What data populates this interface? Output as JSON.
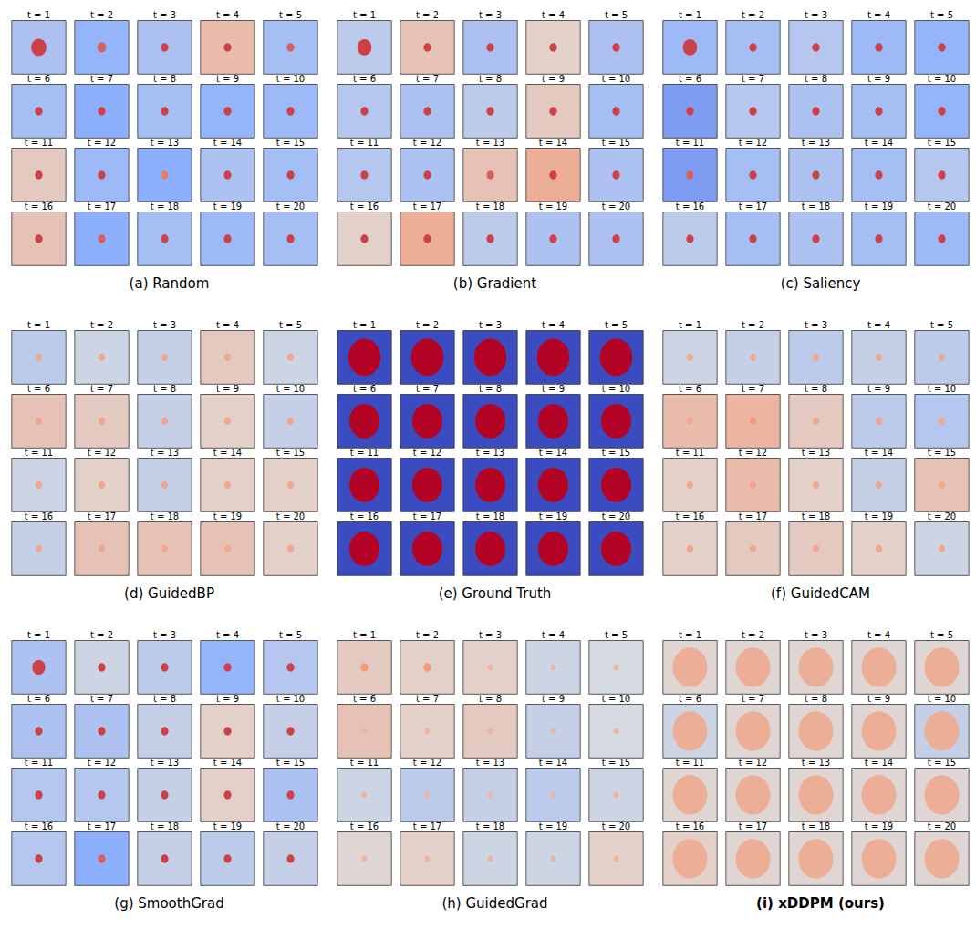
{
  "frame_titles": [
    "t = 1",
    "t = 2",
    "t = 3",
    "t = 4",
    "t = 5",
    "t = 6",
    "t = 7",
    "t = 8",
    "t = 9",
    "t = 10",
    "t = 11",
    "t = 12",
    "t = 13",
    "t = 14",
    "t = 15",
    "t = 16",
    "t = 17",
    "t = 18",
    "t = 19",
    "t = 20"
  ],
  "chart_data": [
    {
      "type": "heatmap",
      "title": "(a) Random",
      "clim": [
        -1,
        1
      ],
      "tick_labels": false,
      "frames": [
        [
          -0.3,
          0.8,
          0.14
        ],
        [
          -0.45,
          0.7,
          0.08
        ],
        [
          -0.3,
          0.8,
          0.07
        ],
        [
          0.25,
          0.8,
          0.07
        ],
        [
          -0.35,
          0.7,
          0.07
        ],
        [
          -0.35,
          0.8,
          0.07
        ],
        [
          -0.5,
          0.8,
          0.07
        ],
        [
          -0.35,
          0.8,
          0.07
        ],
        [
          -0.45,
          0.8,
          0.07
        ],
        [
          -0.4,
          0.8,
          0.07
        ],
        [
          0.15,
          0.8,
          0.07
        ],
        [
          -0.4,
          0.8,
          0.07
        ],
        [
          -0.5,
          0.6,
          0.07
        ],
        [
          -0.3,
          0.8,
          0.07
        ],
        [
          -0.35,
          0.8,
          0.07
        ],
        [
          0.2,
          0.8,
          0.07
        ],
        [
          -0.5,
          0.7,
          0.07
        ],
        [
          -0.35,
          0.8,
          0.07
        ],
        [
          -0.4,
          0.8,
          0.07
        ],
        [
          -0.35,
          0.8,
          0.07
        ]
      ]
    },
    {
      "type": "heatmap",
      "title": "(b) Gradient",
      "clim": [
        -1,
        1
      ],
      "tick_labels": false,
      "frames": [
        [
          -0.2,
          0.8,
          0.13
        ],
        [
          0.2,
          0.8,
          0.07
        ],
        [
          -0.3,
          0.8,
          0.07
        ],
        [
          0.1,
          0.8,
          0.07
        ],
        [
          -0.3,
          0.8,
          0.07
        ],
        [
          -0.25,
          0.8,
          0.07
        ],
        [
          -0.3,
          0.8,
          0.07
        ],
        [
          -0.2,
          0.8,
          0.07
        ],
        [
          0.15,
          0.8,
          0.07
        ],
        [
          -0.35,
          0.8,
          0.07
        ],
        [
          -0.25,
          0.8,
          0.07
        ],
        [
          -0.3,
          0.8,
          0.07
        ],
        [
          0.2,
          0.7,
          0.07
        ],
        [
          0.35,
          0.8,
          0.07
        ],
        [
          -0.3,
          0.8,
          0.07
        ],
        [
          0.1,
          0.8,
          0.07
        ],
        [
          0.35,
          0.8,
          0.07
        ],
        [
          -0.2,
          0.8,
          0.07
        ],
        [
          -0.3,
          0.8,
          0.07
        ],
        [
          -0.3,
          0.8,
          0.07
        ]
      ]
    },
    {
      "type": "heatmap",
      "title": "(c) Saliency",
      "clim": [
        -1,
        1
      ],
      "tick_labels": false,
      "frames": [
        [
          -0.4,
          0.8,
          0.13
        ],
        [
          -0.35,
          0.8,
          0.07
        ],
        [
          -0.25,
          0.8,
          0.07
        ],
        [
          -0.4,
          0.8,
          0.07
        ],
        [
          -0.45,
          0.8,
          0.07
        ],
        [
          -0.6,
          0.8,
          0.07
        ],
        [
          -0.25,
          0.8,
          0.07
        ],
        [
          -0.3,
          0.8,
          0.07
        ],
        [
          -0.35,
          0.8,
          0.07
        ],
        [
          -0.45,
          0.8,
          0.07
        ],
        [
          -0.6,
          0.7,
          0.07
        ],
        [
          -0.35,
          0.8,
          0.07
        ],
        [
          -0.3,
          0.8,
          0.07
        ],
        [
          -0.35,
          0.8,
          0.07
        ],
        [
          -0.25,
          0.8,
          0.07
        ],
        [
          -0.2,
          0.8,
          0.07
        ],
        [
          -0.35,
          0.8,
          0.07
        ],
        [
          -0.3,
          0.8,
          0.07
        ],
        [
          -0.35,
          0.8,
          0.07
        ],
        [
          -0.4,
          0.8,
          0.07
        ]
      ]
    },
    {
      "type": "heatmap",
      "title": "(d) GuidedBP",
      "clim": [
        -1,
        1
      ],
      "tick_labels": false,
      "frames": [
        [
          -0.2,
          0.4,
          0.06
        ],
        [
          -0.1,
          0.4,
          0.06
        ],
        [
          -0.15,
          0.4,
          0.06
        ],
        [
          0.15,
          0.4,
          0.06
        ],
        [
          -0.1,
          0.4,
          0.06
        ],
        [
          0.2,
          0.4,
          0.06
        ],
        [
          0.15,
          0.4,
          0.06
        ],
        [
          -0.15,
          0.4,
          0.06
        ],
        [
          0.1,
          0.4,
          0.06
        ],
        [
          -0.15,
          0.4,
          0.06
        ],
        [
          -0.1,
          0.4,
          0.06
        ],
        [
          0.1,
          0.4,
          0.06
        ],
        [
          -0.15,
          0.4,
          0.06
        ],
        [
          0.1,
          0.4,
          0.06
        ],
        [
          0.1,
          0.4,
          0.06
        ],
        [
          -0.15,
          0.4,
          0.06
        ],
        [
          0.2,
          0.4,
          0.06
        ],
        [
          0.2,
          0.4,
          0.06
        ],
        [
          0.2,
          0.4,
          0.06
        ],
        [
          0.1,
          0.4,
          0.06
        ]
      ]
    },
    {
      "type": "heatmap",
      "title": "(e) Ground Truth",
      "clim": [
        -1,
        1
      ],
      "tick_labels": false,
      "frames": [
        [
          -1,
          1,
          0.3
        ],
        [
          -1,
          1,
          0.3
        ],
        [
          -1,
          1,
          0.3
        ],
        [
          -1,
          1,
          0.3
        ],
        [
          -1,
          1,
          0.3
        ],
        [
          -1,
          1,
          0.28
        ],
        [
          -1,
          1,
          0.28
        ],
        [
          -1,
          1,
          0.28
        ],
        [
          -1,
          1,
          0.28
        ],
        [
          -1,
          1,
          0.28
        ],
        [
          -1,
          1,
          0.28
        ],
        [
          -1,
          1,
          0.28
        ],
        [
          -1,
          1,
          0.28
        ],
        [
          -1,
          1,
          0.28
        ],
        [
          -1,
          1,
          0.28
        ],
        [
          -1,
          1,
          0.28
        ],
        [
          -1,
          1,
          0.28
        ],
        [
          -1,
          1,
          0.28
        ],
        [
          -1,
          1,
          0.28
        ],
        [
          -1,
          1,
          0.28
        ]
      ]
    },
    {
      "type": "heatmap",
      "title": "(f) GuidedCAM",
      "clim": [
        -1,
        1
      ],
      "tick_labels": false,
      "frames": [
        [
          -0.1,
          0.4,
          0.06
        ],
        [
          -0.15,
          0.4,
          0.06
        ],
        [
          -0.2,
          0.4,
          0.06
        ],
        [
          -0.15,
          0.4,
          0.06
        ],
        [
          -0.2,
          0.4,
          0.06
        ],
        [
          0.25,
          0.4,
          0.06
        ],
        [
          0.3,
          0.5,
          0.06
        ],
        [
          0.15,
          0.4,
          0.06
        ],
        [
          -0.2,
          0.4,
          0.06
        ],
        [
          -0.25,
          0.4,
          0.06
        ],
        [
          0.1,
          0.4,
          0.06
        ],
        [
          0.25,
          0.4,
          0.06
        ],
        [
          0.1,
          0.4,
          0.06
        ],
        [
          -0.15,
          0.4,
          0.06
        ],
        [
          0.2,
          0.4,
          0.06
        ],
        [
          0.1,
          0.4,
          0.06
        ],
        [
          0.15,
          0.4,
          0.06
        ],
        [
          0.15,
          0.4,
          0.06
        ],
        [
          0.1,
          0.4,
          0.06
        ],
        [
          -0.1,
          0.4,
          0.06
        ]
      ]
    },
    {
      "type": "heatmap",
      "title": "(g) SmoothGrad",
      "clim": [
        -1,
        1
      ],
      "tick_labels": false,
      "frames": [
        [
          -0.3,
          0.8,
          0.12
        ],
        [
          -0.1,
          0.8,
          0.07
        ],
        [
          -0.2,
          0.8,
          0.07
        ],
        [
          -0.45,
          0.8,
          0.07
        ],
        [
          -0.25,
          0.8,
          0.07
        ],
        [
          -0.3,
          0.8,
          0.07
        ],
        [
          -0.3,
          0.8,
          0.07
        ],
        [
          -0.15,
          0.8,
          0.07
        ],
        [
          0.1,
          0.8,
          0.07
        ],
        [
          -0.15,
          0.8,
          0.07
        ],
        [
          -0.25,
          0.8,
          0.07
        ],
        [
          -0.25,
          0.8,
          0.07
        ],
        [
          -0.15,
          0.8,
          0.07
        ],
        [
          0.1,
          0.8,
          0.07
        ],
        [
          -0.3,
          0.8,
          0.07
        ],
        [
          -0.25,
          0.8,
          0.07
        ],
        [
          -0.5,
          0.7,
          0.07
        ],
        [
          -0.15,
          0.8,
          0.07
        ],
        [
          -0.2,
          0.8,
          0.07
        ],
        [
          -0.15,
          0.8,
          0.07
        ]
      ]
    },
    {
      "type": "heatmap",
      "title": "(h) GuidedGrad",
      "clim": [
        -1,
        1
      ],
      "tick_labels": false,
      "frames": [
        [
          0.15,
          0.5,
          0.07
        ],
        [
          0.1,
          0.5,
          0.07
        ],
        [
          0.1,
          0.3,
          0.05
        ],
        [
          -0.1,
          0.3,
          0.05
        ],
        [
          -0.05,
          0.3,
          0.05
        ],
        [
          0.2,
          0.3,
          0.05
        ],
        [
          0.1,
          0.3,
          0.05
        ],
        [
          0.15,
          0.3,
          0.05
        ],
        [
          -0.15,
          0.3,
          0.05
        ],
        [
          -0.05,
          0.3,
          0.05
        ],
        [
          -0.1,
          0.3,
          0.05
        ],
        [
          -0.2,
          0.3,
          0.05
        ],
        [
          -0.15,
          0.3,
          0.05
        ],
        [
          -0.2,
          0.3,
          0.05
        ],
        [
          -0.1,
          0.3,
          0.05
        ],
        [
          0.05,
          0.3,
          0.05
        ],
        [
          0.1,
          0.3,
          0.05
        ],
        [
          -0.1,
          0.3,
          0.05
        ],
        [
          -0.1,
          0.3,
          0.05
        ],
        [
          0.1,
          0.3,
          0.05
        ]
      ]
    },
    {
      "type": "heatmap",
      "title": "(i) xDDPM (ours)",
      "clim": [
        -1,
        1
      ],
      "tick_labels": false,
      "frames": [
        [
          0.05,
          0.35,
          0.32
        ],
        [
          0.05,
          0.35,
          0.32
        ],
        [
          0.05,
          0.35,
          0.32
        ],
        [
          0.05,
          0.35,
          0.32
        ],
        [
          0.05,
          0.35,
          0.32
        ],
        [
          -0.1,
          0.35,
          0.32
        ],
        [
          0.05,
          0.35,
          0.32
        ],
        [
          0.05,
          0.35,
          0.32
        ],
        [
          0.05,
          0.35,
          0.32
        ],
        [
          -0.15,
          0.35,
          0.32
        ],
        [
          0.05,
          0.35,
          0.32
        ],
        [
          0.05,
          0.35,
          0.32
        ],
        [
          0.05,
          0.35,
          0.32
        ],
        [
          0.05,
          0.35,
          0.32
        ],
        [
          0.05,
          0.35,
          0.32
        ],
        [
          0.1,
          0.35,
          0.32
        ],
        [
          0.05,
          0.35,
          0.32
        ],
        [
          0.05,
          0.35,
          0.32
        ],
        [
          0.05,
          0.35,
          0.32
        ],
        [
          0.05,
          0.35,
          0.32
        ]
      ]
    }
  ]
}
